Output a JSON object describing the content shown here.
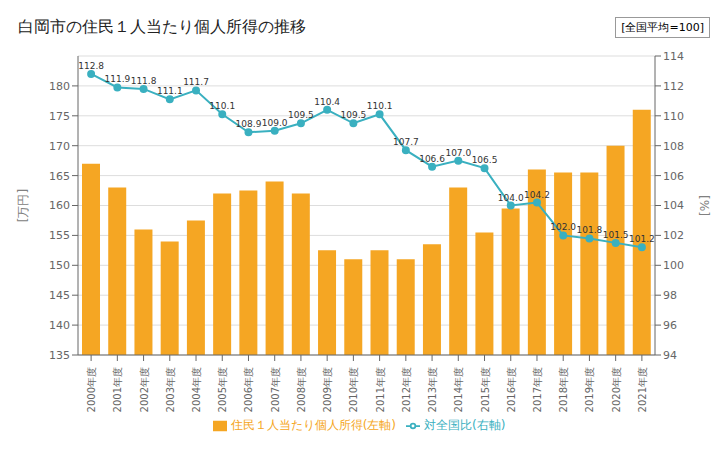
{
  "chart_data": {
    "type": "bar",
    "title": "白岡市の住民１人当たり個人所得の推移",
    "annotation": "[全国平均=100]",
    "ylabel": "[万円]",
    "y2label": "[%]",
    "categories": [
      "2000年度",
      "2001年度",
      "2002年度",
      "2003年度",
      "2004年度",
      "2005年度",
      "2006年度",
      "2007年度",
      "2008年度",
      "2009年度",
      "2010年度",
      "2011年度",
      "2012年度",
      "2013年度",
      "2014年度",
      "2015年度",
      "2016年度",
      "2017年度",
      "2018年度",
      "2019年度",
      "2020年度",
      "2021年度"
    ],
    "series": [
      {
        "name": "住民１人当たり個人所得(左軸)",
        "type": "bar",
        "color": "#f5a623",
        "values": [
          167,
          163,
          156,
          154,
          157.5,
          162,
          162.5,
          164,
          162,
          152.5,
          151,
          152.5,
          151,
          153.5,
          163,
          155.5,
          159.5,
          166,
          165.5,
          165.5,
          170,
          176
        ]
      },
      {
        "name": "対全国比(右軸)",
        "type": "line",
        "axis": "y2",
        "color": "#3ab0c0",
        "marker": "circle",
        "data_labels": true,
        "values": [
          112.8,
          111.9,
          111.8,
          111.1,
          111.7,
          110.1,
          108.9,
          109.0,
          109.5,
          110.4,
          109.5,
          110.1,
          107.7,
          106.6,
          107.0,
          106.5,
          104.0,
          104.2,
          102.0,
          101.8,
          101.5,
          101.2
        ],
        "value_labels": [
          "112.8",
          "111.9",
          "111.8",
          "111.1",
          "111.7",
          "110.1",
          "108.9",
          "109.0",
          "109.5",
          "110.4",
          "109.5",
          "110.1",
          "107.7",
          "106.6",
          "107.0",
          "106.5",
          "104.0",
          "104.2",
          "102.0",
          "101.8",
          "101.5",
          "101.2"
        ]
      }
    ],
    "ylim": [
      135,
      185
    ],
    "yticks": [
      135,
      140,
      145,
      150,
      155,
      160,
      165,
      170,
      175,
      180
    ],
    "y2lim": [
      94.0,
      114.0
    ],
    "y2ticks": [
      94.0,
      96.0,
      98.0,
      100.0,
      102.0,
      104.0,
      106.0,
      108.0,
      110.0,
      112.0,
      114.0
    ],
    "grid": true,
    "legend": "bottom"
  }
}
